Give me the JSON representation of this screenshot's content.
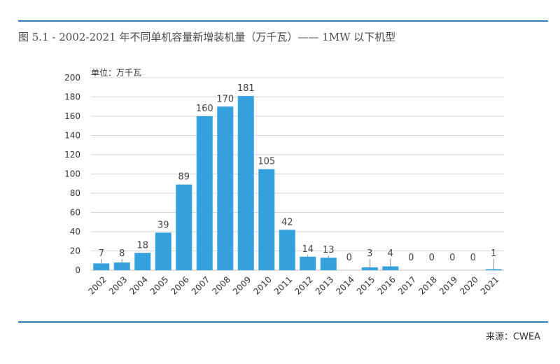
{
  "header": {
    "title": "图 5.1 - 2002-2021 年不同单机容量新增装机量（万千瓦）—— 1MW 以下机型"
  },
  "footer": {
    "source": "来源：CWEA"
  },
  "colors": {
    "bar": "#34a1dc",
    "rule": "#2f7fc1",
    "grid": "#d6d6d6"
  },
  "chart_data": {
    "type": "bar",
    "title": "图 5.1 - 2002-2021 年不同单机容量新增装机量（万千瓦）—— 1MW 以下机型",
    "unit_label": "单位：万千瓦",
    "xlabel": "",
    "ylabel": "",
    "categories": [
      "2002",
      "2003",
      "2004",
      "2005",
      "2006",
      "2007",
      "2008",
      "2009",
      "2010",
      "2011",
      "2012",
      "2013",
      "2014",
      "2015",
      "2016",
      "2017",
      "2018",
      "2019",
      "2020",
      "2021"
    ],
    "values": [
      7,
      8,
      18,
      39,
      89,
      160,
      170,
      181,
      105,
      42,
      14,
      13,
      0,
      3,
      4,
      0,
      0,
      0,
      0,
      1
    ],
    "ylim": [
      0,
      200
    ],
    "yticks": [
      0,
      20,
      40,
      60,
      80,
      100,
      120,
      140,
      160,
      180,
      200
    ],
    "grid": true,
    "legend": "none",
    "source": "来源：CWEA"
  }
}
